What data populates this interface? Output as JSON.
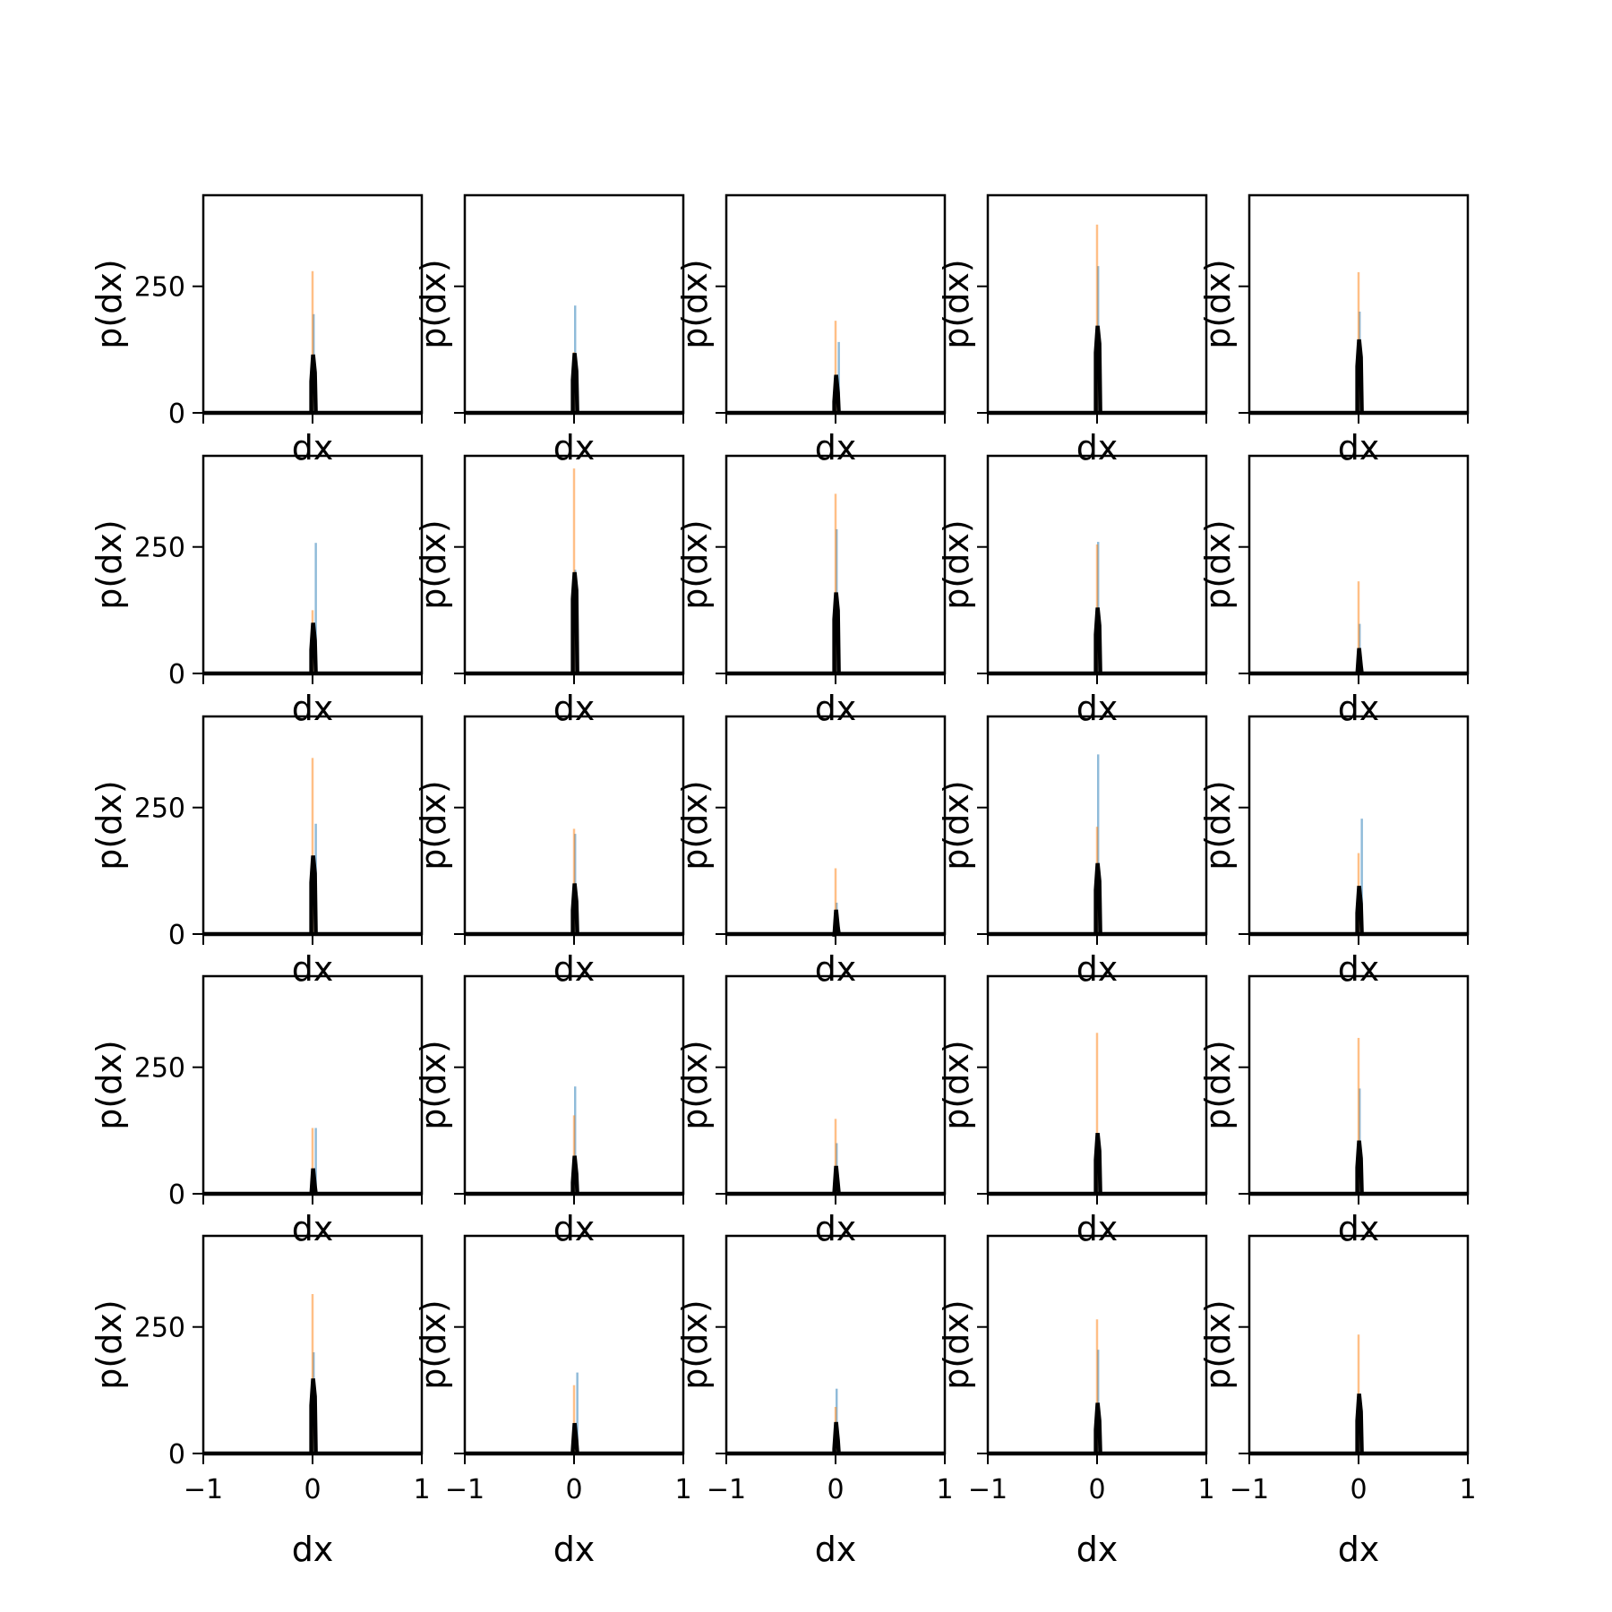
{
  "figure": {
    "xlabel": "dx",
    "ylabel": "p(dx)",
    "xticks": [
      -1,
      0,
      1
    ],
    "yticks": [
      0,
      250
    ],
    "xlim": [
      -1,
      1
    ],
    "ylim": [
      0,
      430
    ],
    "grid": false,
    "colors": {
      "blue": "#1f77b4",
      "orange": "#ff7f0e",
      "line": "#000000"
    }
  },
  "chart_data": {
    "type": "bar",
    "layout": "5x5 grid of histograms",
    "xlabel": "dx",
    "ylabel": "p(dx)",
    "xlim": [
      -1,
      1
    ],
    "ylim": [
      0,
      430
    ],
    "xticks": [
      -1,
      0,
      1
    ],
    "yticks": [
      0,
      250
    ],
    "panels": [
      {
        "row": 0,
        "col": 0,
        "blue": [
          [
            0.0,
            0.02,
            195
          ]
        ],
        "orange": [
          [
            -0.01,
            0.01,
            280
          ]
        ],
        "black": 115
      },
      {
        "row": 0,
        "col": 1,
        "blue": [
          [
            0.0,
            0.02,
            212
          ]
        ],
        "orange": [
          [
            -0.01,
            0.01,
            120
          ]
        ],
        "black": 118
      },
      {
        "row": 0,
        "col": 2,
        "blue": [
          [
            0.02,
            0.04,
            140
          ]
        ],
        "orange": [
          [
            -0.01,
            0.01,
            182
          ]
        ],
        "black": 75
      },
      {
        "row": 0,
        "col": 3,
        "blue": [
          [
            0.0,
            0.02,
            290
          ]
        ],
        "orange": [
          [
            -0.01,
            0.01,
            372
          ]
        ],
        "black": 172
      },
      {
        "row": 0,
        "col": 4,
        "blue": [
          [
            0.0,
            0.02,
            200
          ]
        ],
        "orange": [
          [
            -0.01,
            0.01,
            278
          ]
        ],
        "black": 145
      },
      {
        "row": 1,
        "col": 0,
        "blue": [
          [
            0.02,
            0.04,
            258
          ]
        ],
        "orange": [
          [
            -0.01,
            0.01,
            125
          ]
        ],
        "black": 100
      },
      {
        "row": 1,
        "col": 1,
        "blue": [
          [
            0.0,
            0.02,
            205
          ]
        ],
        "orange": [
          [
            -0.01,
            0.01,
            405
          ]
        ],
        "black": 200
      },
      {
        "row": 1,
        "col": 2,
        "blue": [
          [
            0.0,
            0.02,
            285
          ]
        ],
        "orange": [
          [
            -0.01,
            0.01,
            355
          ]
        ],
        "black": 160
      },
      {
        "row": 1,
        "col": 3,
        "blue": [
          [
            0.0,
            0.02,
            260
          ]
        ],
        "orange": [
          [
            -0.01,
            0.01,
            255
          ]
        ],
        "black": 130
      },
      {
        "row": 1,
        "col": 4,
        "blue": [
          [
            0.0,
            0.02,
            98
          ]
        ],
        "orange": [
          [
            -0.01,
            0.01,
            182
          ]
        ],
        "black": 50
      },
      {
        "row": 2,
        "col": 0,
        "blue": [
          [
            0.02,
            0.04,
            218
          ]
        ],
        "orange": [
          [
            -0.01,
            0.01,
            348
          ]
        ],
        "black": 155
      },
      {
        "row": 2,
        "col": 1,
        "blue": [
          [
            0.0,
            0.02,
            198
          ]
        ],
        "orange": [
          [
            -0.01,
            0.01,
            208
          ]
        ],
        "black": 100
      },
      {
        "row": 2,
        "col": 2,
        "blue": [
          [
            0.0,
            0.02,
            62
          ]
        ],
        "orange": [
          [
            -0.01,
            0.01,
            130
          ]
        ],
        "black": 48
      },
      {
        "row": 2,
        "col": 3,
        "blue": [
          [
            0.0,
            0.02,
            355
          ]
        ],
        "orange": [
          [
            -0.01,
            0.01,
            212
          ]
        ],
        "black": 140
      },
      {
        "row": 2,
        "col": 4,
        "blue": [
          [
            0.02,
            0.04,
            228
          ]
        ],
        "orange": [
          [
            -0.01,
            0.01,
            160
          ]
        ],
        "black": 95
      },
      {
        "row": 3,
        "col": 0,
        "blue": [
          [
            0.02,
            0.04,
            130
          ]
        ],
        "orange": [
          [
            -0.01,
            0.01,
            130
          ]
        ],
        "black": 50
      },
      {
        "row": 3,
        "col": 1,
        "blue": [
          [
            0.0,
            0.02,
            212
          ]
        ],
        "orange": [
          [
            -0.01,
            0.01,
            155
          ]
        ],
        "black": 75
      },
      {
        "row": 3,
        "col": 2,
        "blue": [
          [
            0.0,
            0.02,
            100
          ]
        ],
        "orange": [
          [
            -0.01,
            0.01,
            148
          ]
        ],
        "black": 55
      },
      {
        "row": 3,
        "col": 3,
        "blue": [
          [
            0.0,
            0.02,
            118
          ]
        ],
        "orange": [
          [
            -0.01,
            0.01,
            318
          ]
        ],
        "black": 120
      },
      {
        "row": 3,
        "col": 4,
        "blue": [
          [
            0.0,
            0.02,
            208
          ]
        ],
        "orange": [
          [
            -0.01,
            0.01,
            308
          ]
        ],
        "black": 105
      },
      {
        "row": 4,
        "col": 0,
        "blue": [
          [
            0.0,
            0.02,
            200
          ]
        ],
        "orange": [
          [
            -0.01,
            0.01,
            315
          ]
        ],
        "black": 148
      },
      {
        "row": 4,
        "col": 1,
        "blue": [
          [
            0.02,
            0.04,
            160
          ]
        ],
        "orange": [
          [
            -0.01,
            0.01,
            135
          ]
        ],
        "black": 60
      },
      {
        "row": 4,
        "col": 2,
        "blue": [
          [
            0.0,
            0.02,
            128
          ]
        ],
        "orange": [
          [
            -0.01,
            0.01,
            92
          ]
        ],
        "black": 62
      },
      {
        "row": 4,
        "col": 3,
        "blue": [
          [
            0.0,
            0.02,
            205
          ]
        ],
        "orange": [
          [
            -0.01,
            0.01,
            265
          ]
        ],
        "black": 100
      },
      {
        "row": 4,
        "col": 4,
        "blue": [
          [
            0.0,
            0.02,
            118
          ]
        ],
        "orange": [
          [
            -0.01,
            0.01,
            235
          ]
        ],
        "black": 118
      }
    ]
  }
}
